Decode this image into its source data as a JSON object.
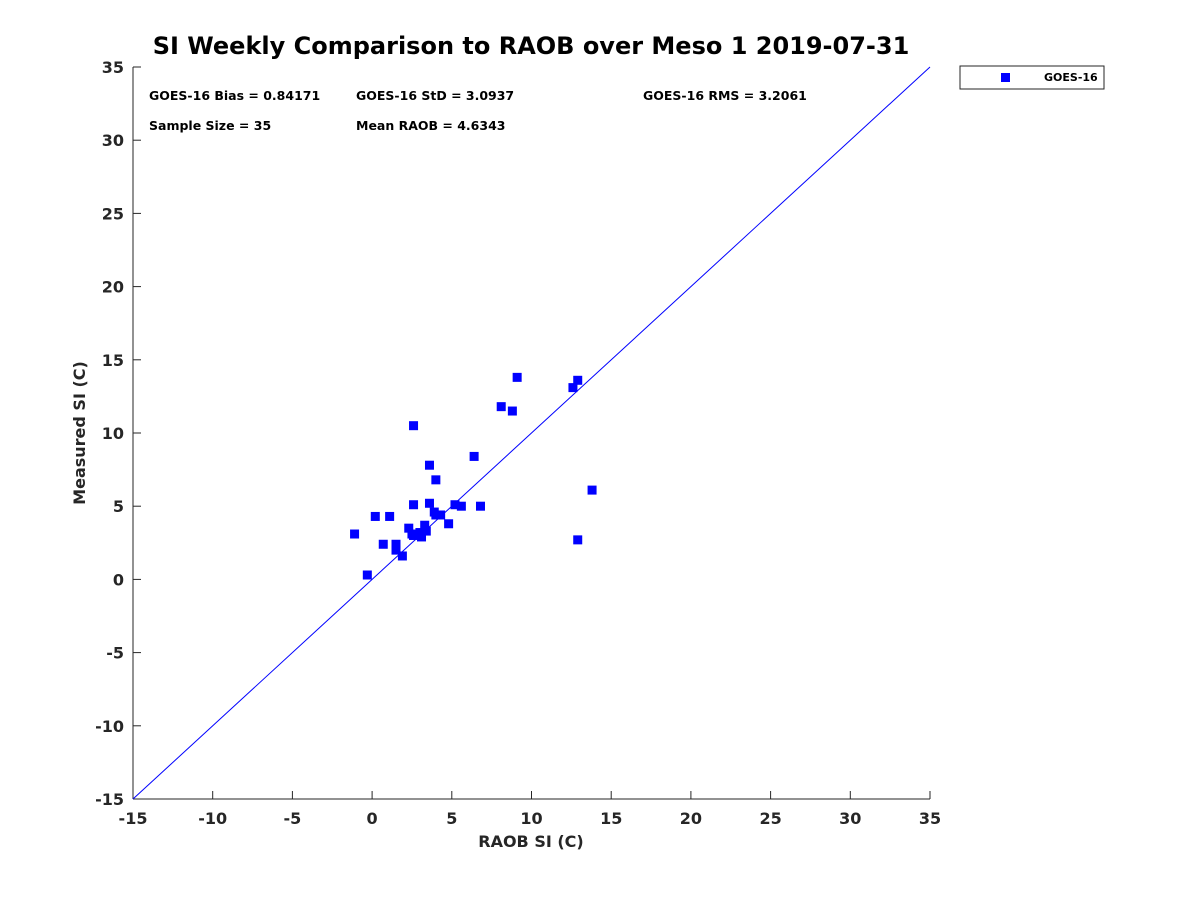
{
  "chart_data": {
    "type": "scatter",
    "title": "SI Weekly Comparison to RAOB over Meso 1 2019-07-31",
    "xlabel": "RAOB SI (C)",
    "ylabel": "Measured SI (C)",
    "xlim": [
      -15,
      35
    ],
    "ylim": [
      -15,
      35
    ],
    "xticks": [
      -15,
      -10,
      -5,
      0,
      5,
      10,
      15,
      20,
      25,
      30,
      35
    ],
    "yticks": [
      -15,
      -10,
      -5,
      0,
      5,
      10,
      15,
      20,
      25,
      30,
      35
    ],
    "grid": false,
    "legend_position": "outside top-right",
    "reference_line": {
      "name": "1:1 line",
      "color": "#0000ff",
      "from": [
        -15,
        -15
      ],
      "to": [
        35,
        35
      ]
    },
    "series": [
      {
        "name": "GOES-16",
        "color": "#0000ff",
        "marker": "square",
        "points": [
          [
            -1.1,
            3.1
          ],
          [
            -0.3,
            0.3
          ],
          [
            0.2,
            4.3
          ],
          [
            0.7,
            2.4
          ],
          [
            1.1,
            4.3
          ],
          [
            1.5,
            2.4
          ],
          [
            1.5,
            2.0
          ],
          [
            1.9,
            1.6
          ],
          [
            2.3,
            3.5
          ],
          [
            2.5,
            3.1
          ],
          [
            2.6,
            3.0
          ],
          [
            2.6,
            5.1
          ],
          [
            2.6,
            10.5
          ],
          [
            3.1,
            2.9
          ],
          [
            3.3,
            3.7
          ],
          [
            3.4,
            3.3
          ],
          [
            3.6,
            5.2
          ],
          [
            3.6,
            7.8
          ],
          [
            3.9,
            4.6
          ],
          [
            4.0,
            6.8
          ],
          [
            4.0,
            4.4
          ],
          [
            4.3,
            4.4
          ],
          [
            4.8,
            3.8
          ],
          [
            5.2,
            5.1
          ],
          [
            5.6,
            5.0
          ],
          [
            6.4,
            8.4
          ],
          [
            6.8,
            5.0
          ],
          [
            8.1,
            11.8
          ],
          [
            8.8,
            11.5
          ],
          [
            9.1,
            13.8
          ],
          [
            12.6,
            13.1
          ],
          [
            12.9,
            13.6
          ],
          [
            12.9,
            2.7
          ],
          [
            13.8,
            6.1
          ],
          [
            3.0,
            3.2
          ]
        ]
      }
    ],
    "annotations": {
      "bias": "GOES-16 Bias = 0.84171",
      "std": "GOES-16 StD = 3.0937",
      "rms": "GOES-16 RMS = 3.2061",
      "sample_size": "Sample Size = 35",
      "mean_raob": "Mean RAOB = 4.6343"
    }
  }
}
